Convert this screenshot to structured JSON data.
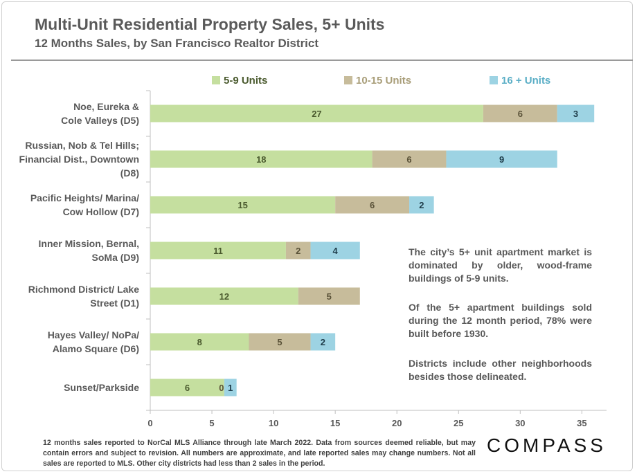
{
  "header": {
    "title": "Multi-Unit Residential Property Sales, 5+ Units",
    "subtitle": "12 Months Sales, by San Francisco Realtor District"
  },
  "chart_data": {
    "type": "bar",
    "orientation": "horizontal",
    "stacked": true,
    "categories": [
      [
        "Noe, Eureka &",
        "Cole Valleys (D5)"
      ],
      [
        "Russian, Nob & Tel Hills;",
        "Financial Dist., Downtown",
        "(D8)"
      ],
      [
        "Pacific Heights/ Marina/",
        "Cow Hollow (D7)"
      ],
      [
        "Inner Mission, Bernal,",
        "SoMa (D9)"
      ],
      [
        "Richmond District/ Lake",
        "Street (D1)"
      ],
      [
        "Hayes Valley/ NoPa/",
        "Alamo Square (D6)"
      ],
      [
        "Sunset/Parkside"
      ]
    ],
    "series": [
      {
        "name": "5-9 Units",
        "color": "#c5df9f",
        "label_color": "#4a5a2e",
        "values": [
          27,
          18,
          15,
          11,
          12,
          8,
          6
        ]
      },
      {
        "name": "10-15 Units",
        "color": "#c7bc9b",
        "label_color": "#5a5238",
        "values": [
          6,
          6,
          6,
          2,
          5,
          5,
          0
        ]
      },
      {
        "name": "16 + Units",
        "color": "#9dd3e3",
        "label_color": "#1f3d4a",
        "values": [
          3,
          9,
          2,
          4,
          0,
          2,
          1
        ]
      }
    ],
    "data_labels": [
      [
        "27",
        "6",
        "3"
      ],
      [
        "18",
        "6",
        "9"
      ],
      [
        "15",
        "6",
        "2"
      ],
      [
        "11",
        "2",
        "4"
      ],
      [
        "12",
        "5",
        ""
      ],
      [
        "8",
        "5",
        "2"
      ],
      [
        "6",
        "0",
        "1"
      ]
    ],
    "xlim": [
      0,
      37
    ],
    "xticks": [
      0,
      5,
      10,
      15,
      20,
      25,
      30,
      35
    ],
    "legend_position": "top",
    "grid": false
  },
  "notes": [
    "The city’s 5+ unit apartment market is dominated by older, wood-frame buildings of 5-9 units.",
    "Of the 5+ apartment buildings sold during the 12 month period, 78% were built before 1930.",
    "Districts include other neighborhoods besides those delineated."
  ],
  "footer": "12 months sales reported to NorCal MLS Alliance through late March 2022. Data from sources deemed reliable, but may contain errors and subject to revision. All numbers are approximate, and late reported sales may change numbers. Not all sales are reported to MLS. Other city districts had less than 2 sales in the period.",
  "logo": "COMPASS"
}
